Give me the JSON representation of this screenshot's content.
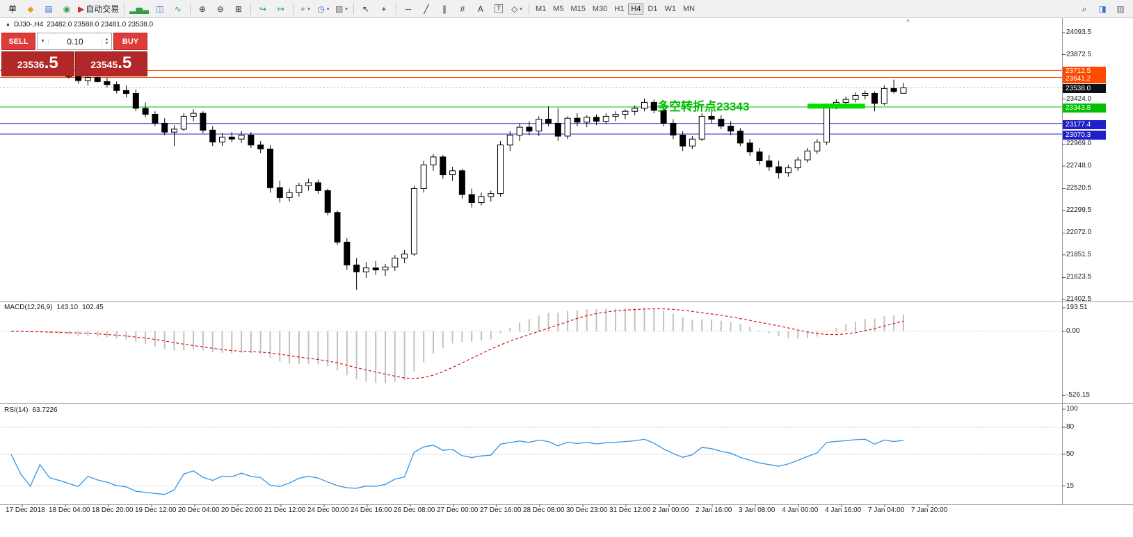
{
  "toolbar": {
    "groups": [
      [
        {
          "name": "new-order-button",
          "glyph": "单",
          "color": "#1a1a1a"
        },
        {
          "name": "new-chart-icon",
          "glyph": "◆",
          "color": "#e0a030"
        },
        {
          "name": "market-watch-icon",
          "glyph": "▤",
          "color": "#3a6fd8"
        },
        {
          "name": "navigator-icon",
          "glyph": "◉",
          "color": "#2f9e44"
        },
        {
          "name": "autotrading-button",
          "glyph": "▶",
          "color": "#c83232",
          "label": "自动交易"
        }
      ],
      [
        {
          "name": "bar-chart-icon",
          "glyph": "▂▅▃",
          "color": "#2f9e44"
        },
        {
          "name": "candle-chart-icon",
          "glyph": "◫",
          "color": "#3a6fd8"
        },
        {
          "name": "line-chart-icon",
          "glyph": "∿",
          "color": "#2f9e44"
        }
      ],
      [
        {
          "name": "zoom-in-icon",
          "glyph": "⊕",
          "color": "#333333"
        },
        {
          "name": "zoom-out-icon",
          "glyph": "⊖",
          "color": "#333333"
        },
        {
          "name": "tile-windows-icon",
          "glyph": "⊞",
          "color": "#333333"
        }
      ],
      [
        {
          "name": "auto-scroll-icon",
          "glyph": "↪",
          "color": "#2f9e44"
        },
        {
          "name": "chart-shift-icon",
          "glyph": "↦",
          "color": "#2f9e44"
        }
      ],
      [
        {
          "name": "add-indicator-icon",
          "glyph": "+",
          "color": "#2f9e44",
          "dropdown": true
        },
        {
          "name": "period-icon",
          "glyph": "◷",
          "color": "#3a6fd8",
          "dropdown": true
        },
        {
          "name": "template-icon",
          "glyph": "▨",
          "color": "#666666",
          "dropdown": true
        }
      ],
      [
        {
          "name": "cursor-icon",
          "glyph": "↖",
          "color": "#333333"
        },
        {
          "name": "crosshair-icon",
          "glyph": "+",
          "color": "#333333"
        }
      ],
      [
        {
          "name": "horizontal-line-icon",
          "glyph": "─",
          "color": "#333333"
        },
        {
          "name": "trendline-icon",
          "glyph": "╱",
          "color": "#333333"
        },
        {
          "name": "channel-icon",
          "glyph": "∥",
          "color": "#333333"
        },
        {
          "name": "fibonacci-icon",
          "glyph": "#",
          "color": "#333333"
        },
        {
          "name": "text-icon",
          "glyph": "A",
          "color": "#333333"
        },
        {
          "name": "text-label-icon",
          "glyph": "T",
          "color": "#333333",
          "boxed": true
        },
        {
          "name": "shapes-icon",
          "glyph": "◇",
          "color": "#333333",
          "dropdown": true
        }
      ]
    ],
    "timeframes": [
      "M1",
      "M5",
      "M15",
      "M30",
      "H1",
      "H4",
      "D1",
      "W1",
      "MN"
    ],
    "active_timeframe": "H4",
    "right_icons": [
      {
        "name": "search-icon",
        "glyph": "⌕",
        "color": "#333333"
      },
      {
        "name": "chat-icon",
        "glyph": "◨",
        "color": "#3a6fd8"
      },
      {
        "name": "alerts-icon",
        "glyph": "▥",
        "color": "#666666"
      }
    ]
  },
  "chart": {
    "caption_icon": "▲",
    "caption_symbol": "DJ30-,H4",
    "caption_ohlc": "23482.0 23588.0 23481.0 23538.0",
    "corner_glyph": "^",
    "annotation": "多空转折点23343",
    "annotation_color": "#00bb00",
    "trade_panel": {
      "sell_label": "SELL",
      "buy_label": "BUY",
      "volume": "0.10",
      "dropdown_glyph": "▼",
      "spin_up": "▲",
      "spin_down": "▼",
      "sell_price": "23536",
      "sell_price_big": ".5",
      "buy_price": "23545",
      "buy_price_big": ".5",
      "button_color": "#df3b3b",
      "price_box_color": "#b22727"
    }
  },
  "indicators": {
    "macd": {
      "name": "MACD(12,26,9)",
      "value_main": "143.10",
      "value_signal": "102.45",
      "axis_ticks": [
        {
          "label": "193.51",
          "value": 193.51
        },
        {
          "label": "0.00",
          "value": 0
        },
        {
          "label": "-526.15",
          "value": -526.15
        }
      ],
      "histogram_color": "#c0c0c0",
      "signal_color": "#e01010"
    },
    "rsi": {
      "name": "RSI(14)",
      "value": "63.7226",
      "axis_ticks": [
        {
          "label": "100",
          "value": 100
        },
        {
          "label": "80",
          "value": 80
        },
        {
          "label": "50",
          "value": 50
        },
        {
          "label": "15",
          "value": 15
        }
      ],
      "levels": [
        80,
        50,
        15
      ],
      "line_color": "#2f93e8"
    }
  },
  "chart_data": {
    "type": "candlestick",
    "symbol": "DJ30-",
    "timeframe": "H4",
    "last_bar": {
      "open": 23482.0,
      "high": 23588.0,
      "low": 23481.0,
      "close": 23538.0
    },
    "y_range": [
      21402.5,
      24093.5
    ],
    "price_ticks": [
      {
        "label": "24093.5",
        "price": 24093.5
      },
      {
        "label": "23872.5",
        "price": 23872.5
      },
      {
        "label": "23424.0",
        "price": 23424.0
      },
      {
        "label": "22969.0",
        "price": 22969.0
      },
      {
        "label": "22748.0",
        "price": 22748.0
      },
      {
        "label": "22520.5",
        "price": 22520.5
      },
      {
        "label": "22299.5",
        "price": 22299.5
      },
      {
        "label": "22072.0",
        "price": 22072.0
      },
      {
        "label": "21851.5",
        "price": 21851.5
      },
      {
        "label": "21623.5",
        "price": 21623.5
      },
      {
        "label": "21402.5",
        "price": 21402.5
      }
    ],
    "price_tags": [
      {
        "label": "23712.5",
        "price": 23712.5,
        "color": "#ff4a00"
      },
      {
        "label": "23641.2",
        "price": 23641.2,
        "color": "#ff4a00"
      },
      {
        "label": "23538.0",
        "price": 23538.0,
        "color": "#0b1014",
        "current": true
      },
      {
        "label": "23343.8",
        "price": 23343.8,
        "color": "#00c000"
      },
      {
        "label": "23177.4",
        "price": 23177.4,
        "color": "#2020c8"
      },
      {
        "label": "23070.3",
        "price": 23070.3,
        "color": "#2020c8"
      }
    ],
    "level_lines": [
      {
        "price": 23712.5,
        "color": "#ff4a00"
      },
      {
        "price": 23641.2,
        "color": "#ff4a00"
      },
      {
        "price": 23538.0,
        "color": "#aaaaaa",
        "dash": true
      },
      {
        "price": 23343.8,
        "color": "#00c000"
      },
      {
        "price": 23177.4,
        "color": "#2020c8"
      },
      {
        "price": 23070.3,
        "color": "#2020c8"
      }
    ],
    "highlight_segment": {
      "price": 23352,
      "from_bar": 83,
      "to_bar": 89,
      "color": "#00dd00",
      "thickness": 7
    },
    "time_labels": [
      "17 Dec 2018",
      "18 Dec 04:00",
      "18 Dec 20:00",
      "19 Dec 12:00",
      "20 Dec 04:00",
      "20 Dec 20:00",
      "21 Dec 12:00",
      "24 Dec 00:00",
      "24 Dec 16:00",
      "26 Dec 08:00",
      "27 Dec 00:00",
      "27 Dec 16:00",
      "28 Dec 08:00",
      "30 Dec 23:00",
      "31 Dec 12:00",
      "2 Jan 00:00",
      "2 Jan 16:00",
      "3 Jan 08:00",
      "4 Jan 00:00",
      "4 Jan 16:00",
      "7 Jan 04:00",
      "7 Jan 20:00"
    ],
    "ohlc": [
      [
        23820,
        23860,
        23760,
        23790
      ],
      [
        23790,
        23840,
        23740,
        23770
      ],
      [
        23770,
        23810,
        23700,
        23730
      ],
      [
        23730,
        23800,
        23690,
        23760
      ],
      [
        23760,
        23790,
        23680,
        23700
      ],
      [
        23700,
        23750,
        23660,
        23680
      ],
      [
        23680,
        23720,
        23630,
        23650
      ],
      [
        23650,
        23700,
        23580,
        23610
      ],
      [
        23610,
        23660,
        23560,
        23640
      ],
      [
        23640,
        23680,
        23590,
        23600
      ],
      [
        23600,
        23640,
        23540,
        23570
      ],
      [
        23570,
        23600,
        23480,
        23510
      ],
      [
        23510,
        23560,
        23440,
        23480
      ],
      [
        23480,
        23520,
        23300,
        23330
      ],
      [
        23330,
        23390,
        23240,
        23270
      ],
      [
        23270,
        23300,
        23150,
        23180
      ],
      [
        23180,
        23230,
        23060,
        23090
      ],
      [
        23090,
        23160,
        22950,
        23120
      ],
      [
        23120,
        23280,
        23100,
        23250
      ],
      [
        23250,
        23320,
        23200,
        23280
      ],
      [
        23280,
        23300,
        23080,
        23110
      ],
      [
        23110,
        23150,
        22950,
        22990
      ],
      [
        22990,
        23080,
        22950,
        23040
      ],
      [
        23040,
        23090,
        22990,
        23020
      ],
      [
        23020,
        23100,
        22980,
        23060
      ],
      [
        23060,
        23090,
        22930,
        22960
      ],
      [
        22960,
        23000,
        22880,
        22920
      ],
      [
        22920,
        22960,
        22480,
        22530
      ],
      [
        22530,
        22600,
        22380,
        22430
      ],
      [
        22430,
        22520,
        22390,
        22480
      ],
      [
        22480,
        22580,
        22440,
        22550
      ],
      [
        22550,
        22620,
        22500,
        22580
      ],
      [
        22580,
        22610,
        22470,
        22500
      ],
      [
        22500,
        22520,
        22250,
        22280
      ],
      [
        22280,
        22300,
        21950,
        21980
      ],
      [
        21980,
        22020,
        21700,
        21750
      ],
      [
        21750,
        21820,
        21500,
        21680
      ],
      [
        21680,
        21780,
        21620,
        21720
      ],
      [
        21720,
        21790,
        21650,
        21700
      ],
      [
        21700,
        21760,
        21640,
        21730
      ],
      [
        21730,
        21850,
        21690,
        21820
      ],
      [
        21820,
        21900,
        21770,
        21860
      ],
      [
        21860,
        22550,
        21840,
        22520
      ],
      [
        22520,
        22800,
        22480,
        22760
      ],
      [
        22760,
        22870,
        22700,
        22840
      ],
      [
        22840,
        22860,
        22620,
        22660
      ],
      [
        22660,
        22740,
        22600,
        22700
      ],
      [
        22700,
        22720,
        22420,
        22460
      ],
      [
        22460,
        22520,
        22330,
        22380
      ],
      [
        22380,
        22480,
        22350,
        22440
      ],
      [
        22440,
        22500,
        22390,
        22470
      ],
      [
        22470,
        23000,
        22440,
        22960
      ],
      [
        22960,
        23100,
        22900,
        23060
      ],
      [
        23060,
        23180,
        23000,
        23140
      ],
      [
        23140,
        23200,
        23060,
        23100
      ],
      [
        23100,
        23250,
        23050,
        23220
      ],
      [
        23220,
        23350,
        23150,
        23180
      ],
      [
        23180,
        23330,
        23000,
        23050
      ],
      [
        23050,
        23250,
        23020,
        23230
      ],
      [
        23230,
        23280,
        23150,
        23190
      ],
      [
        23190,
        23260,
        23140,
        23240
      ],
      [
        23240,
        23270,
        23160,
        23200
      ],
      [
        23200,
        23280,
        23170,
        23250
      ],
      [
        23250,
        23300,
        23200,
        23270
      ],
      [
        23270,
        23320,
        23220,
        23300
      ],
      [
        23300,
        23360,
        23260,
        23330
      ],
      [
        23330,
        23430,
        23300,
        23390
      ],
      [
        23390,
        23420,
        23280,
        23310
      ],
      [
        23310,
        23340,
        23150,
        23180
      ],
      [
        23180,
        23220,
        23020,
        23060
      ],
      [
        23060,
        23100,
        22900,
        22950
      ],
      [
        22950,
        23050,
        22920,
        23020
      ],
      [
        23020,
        23280,
        23000,
        23250
      ],
      [
        23250,
        23300,
        23180,
        23220
      ],
      [
        23220,
        23260,
        23120,
        23150
      ],
      [
        23150,
        23200,
        23060,
        23100
      ],
      [
        23100,
        23130,
        22950,
        22980
      ],
      [
        22980,
        23020,
        22850,
        22890
      ],
      [
        22890,
        22930,
        22760,
        22800
      ],
      [
        22800,
        22860,
        22700,
        22740
      ],
      [
        22740,
        22800,
        22620,
        22680
      ],
      [
        22680,
        22760,
        22640,
        22730
      ],
      [
        22730,
        22840,
        22700,
        22810
      ],
      [
        22810,
        22930,
        22780,
        22900
      ],
      [
        22900,
        23020,
        22870,
        22990
      ],
      [
        22990,
        23380,
        22960,
        23350
      ],
      [
        23350,
        23420,
        23320,
        23390
      ],
      [
        23390,
        23450,
        23350,
        23420
      ],
      [
        23420,
        23490,
        23390,
        23460
      ],
      [
        23460,
        23510,
        23420,
        23480
      ],
      [
        23480,
        23500,
        23300,
        23380
      ],
      [
        23380,
        23560,
        23360,
        23530
      ],
      [
        23530,
        23620,
        23480,
        23500
      ],
      [
        23482,
        23588,
        23481,
        23538
      ]
    ]
  }
}
